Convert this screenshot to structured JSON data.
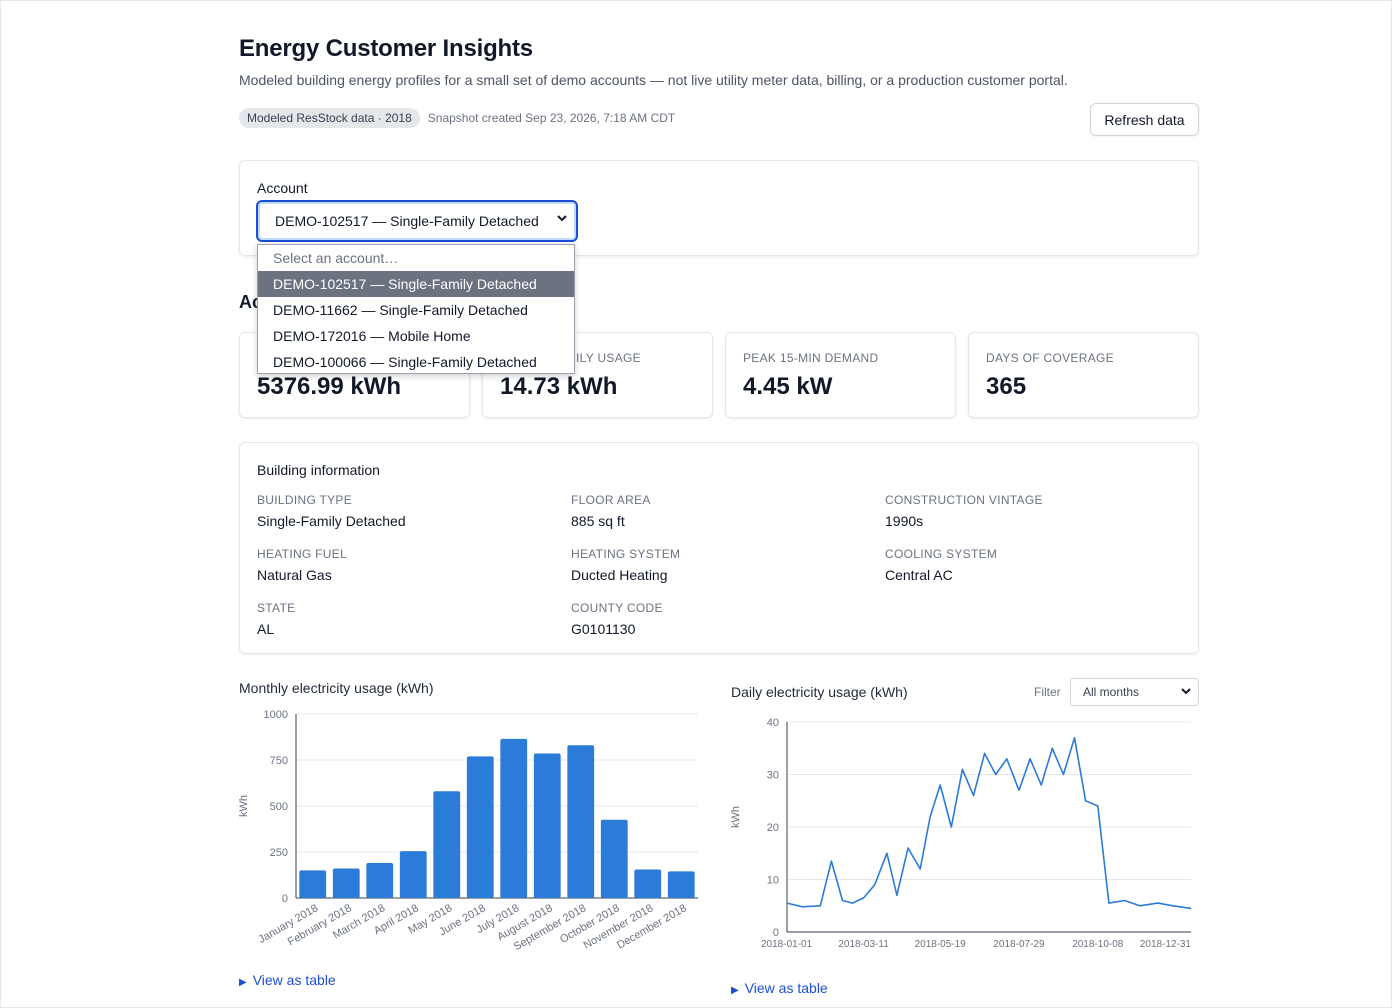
{
  "header": {
    "title": "Energy Customer Insights",
    "subtitle": "Modeled building energy profiles for a small set of demo accounts — not live utility meter data, billing, or a production customer portal.",
    "badge": "Modeled ResStock data · 2018",
    "snapshot": "Snapshot created Sep 23, 2026, 7:18 AM CDT",
    "refresh_label": "Refresh data"
  },
  "account": {
    "label": "Account",
    "selected": "DEMO-102517 — Single-Family Detached",
    "options": [
      "Select an account…",
      "DEMO-102517 — Single-Family Detached",
      "DEMO-11662 — Single-Family Detached",
      "DEMO-172016 — Mobile Home",
      "DEMO-100066 — Single-Family Detached"
    ],
    "highlighted_index": 1
  },
  "section_heading_partial": "Ac",
  "kpis": [
    {
      "label": "",
      "value": "5376.99 kWh"
    },
    {
      "label": "ILY USAGE",
      "value": "14.73 kWh"
    },
    {
      "label": "PEAK 15-MIN DEMAND",
      "value": "4.45 kW"
    },
    {
      "label": "DAYS OF COVERAGE",
      "value": "365"
    }
  ],
  "building": {
    "heading": "Building information",
    "fields": [
      {
        "label": "BUILDING TYPE",
        "value": "Single-Family Detached"
      },
      {
        "label": "FLOOR AREA",
        "value": "885 sq ft"
      },
      {
        "label": "CONSTRUCTION VINTAGE",
        "value": "1990s"
      },
      {
        "label": "HEATING FUEL",
        "value": "Natural Gas"
      },
      {
        "label": "HEATING SYSTEM",
        "value": "Ducted Heating"
      },
      {
        "label": "COOLING SYSTEM",
        "value": "Central AC"
      },
      {
        "label": "STATE",
        "value": "AL"
      },
      {
        "label": "COUNTY CODE",
        "value": "G0101130"
      }
    ]
  },
  "monthly_chart": {
    "heading": "Monthly electricity usage (kWh)",
    "view_table": "View as table"
  },
  "daily_chart": {
    "heading": "Daily electricity usage (kWh)",
    "filter_label": "Filter",
    "filter_value": "All months",
    "view_table": "View as table"
  },
  "colors": {
    "accent": "#2b7bd9",
    "focus": "#1d4ed8",
    "link": "#1d4ed8"
  },
  "chart_data": [
    {
      "type": "bar",
      "title": "Monthly electricity usage (kWh)",
      "ylabel": "kWh",
      "xlabel": "",
      "ylim": [
        0,
        1000
      ],
      "yticks": [
        0,
        250,
        500,
        750,
        1000
      ],
      "grid": true,
      "categories": [
        "January 2018",
        "February 2018",
        "March 2018",
        "April 2018",
        "May 2018",
        "June 2018",
        "July 2018",
        "August 2018",
        "September 2018",
        "October 2018",
        "November 2018",
        "December 2018"
      ],
      "values": [
        150,
        160,
        190,
        255,
        580,
        770,
        865,
        785,
        830,
        425,
        155,
        145
      ]
    },
    {
      "type": "line",
      "title": "Daily electricity usage (kWh)",
      "ylabel": "kWh",
      "xlabel": "",
      "ylim": [
        0,
        40
      ],
      "yticks": [
        0,
        10,
        20,
        30,
        40
      ],
      "grid": true,
      "xticks": [
        "2018-01-01",
        "2018-03-11",
        "2018-05-19",
        "2018-07-29",
        "2018-10-08",
        "2018-12-31"
      ],
      "series": [
        {
          "x": [
            "2018-01-01",
            "2018-01-15",
            "2018-01-31",
            "2018-02-10",
            "2018-02-20",
            "2018-03-01",
            "2018-03-11",
            "2018-03-21",
            "2018-04-01",
            "2018-04-10",
            "2018-04-20",
            "2018-05-01",
            "2018-05-10",
            "2018-05-19",
            "2018-05-29",
            "2018-06-08",
            "2018-06-18",
            "2018-06-28",
            "2018-07-08",
            "2018-07-18",
            "2018-07-29",
            "2018-08-08",
            "2018-08-18",
            "2018-08-28",
            "2018-09-07",
            "2018-09-17",
            "2018-09-27",
            "2018-10-08",
            "2018-10-18",
            "2018-11-01",
            "2018-11-15",
            "2018-12-01",
            "2018-12-15",
            "2018-12-31"
          ],
          "values": [
            5.5,
            4.8,
            5.0,
            13.5,
            6.0,
            5.5,
            6.5,
            9.0,
            15.0,
            7.0,
            16.0,
            12.0,
            22.0,
            28.0,
            20.0,
            31.0,
            26.0,
            34.0,
            30.0,
            33.0,
            27.0,
            33.0,
            28.0,
            35.0,
            30.0,
            37.0,
            25.0,
            24.0,
            5.5,
            6.0,
            5.0,
            5.5,
            5.0,
            4.5
          ]
        }
      ]
    }
  ]
}
